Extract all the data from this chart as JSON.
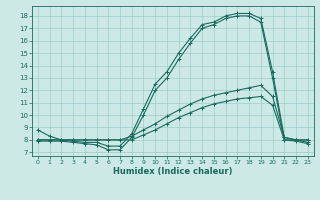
{
  "xlabel": "Humidex (Indice chaleur)",
  "bg_color": "#cce9e6",
  "grid_color": "#9dcfcb",
  "line_color": "#1a6b5e",
  "xlim": [
    -0.5,
    23.5
  ],
  "ylim": [
    6.7,
    18.8
  ],
  "xticks": [
    0,
    1,
    2,
    3,
    4,
    5,
    6,
    7,
    8,
    9,
    10,
    11,
    12,
    13,
    14,
    15,
    16,
    17,
    18,
    19,
    20,
    21,
    22,
    23
  ],
  "yticks": [
    7,
    8,
    9,
    10,
    11,
    12,
    13,
    14,
    15,
    16,
    17,
    18
  ],
  "line1": [
    8.8,
    8.3,
    8.0,
    7.9,
    7.8,
    7.8,
    7.5,
    7.5,
    8.5,
    10.5,
    12.5,
    13.5,
    15.0,
    16.2,
    17.3,
    17.5,
    18.0,
    18.2,
    18.2,
    17.8,
    13.5,
    8.2,
    8.0,
    7.8
  ],
  "line2": [
    7.9,
    7.9,
    7.9,
    7.8,
    7.7,
    7.6,
    7.2,
    7.2,
    8.2,
    10.0,
    12.0,
    13.0,
    14.5,
    15.8,
    17.0,
    17.3,
    17.8,
    18.0,
    18.0,
    17.5,
    13.0,
    8.0,
    7.9,
    7.7
  ],
  "line3": [
    8.0,
    8.0,
    8.0,
    8.0,
    8.0,
    8.0,
    8.0,
    8.0,
    8.3,
    8.8,
    9.3,
    9.9,
    10.4,
    10.9,
    11.3,
    11.6,
    11.8,
    12.0,
    12.2,
    12.4,
    11.5,
    8.2,
    8.0,
    8.0
  ],
  "line4": [
    8.0,
    8.0,
    8.0,
    8.0,
    8.0,
    8.0,
    8.0,
    8.0,
    8.0,
    8.4,
    8.8,
    9.3,
    9.8,
    10.2,
    10.6,
    10.9,
    11.1,
    11.3,
    11.4,
    11.5,
    10.8,
    8.0,
    8.0,
    8.0
  ]
}
